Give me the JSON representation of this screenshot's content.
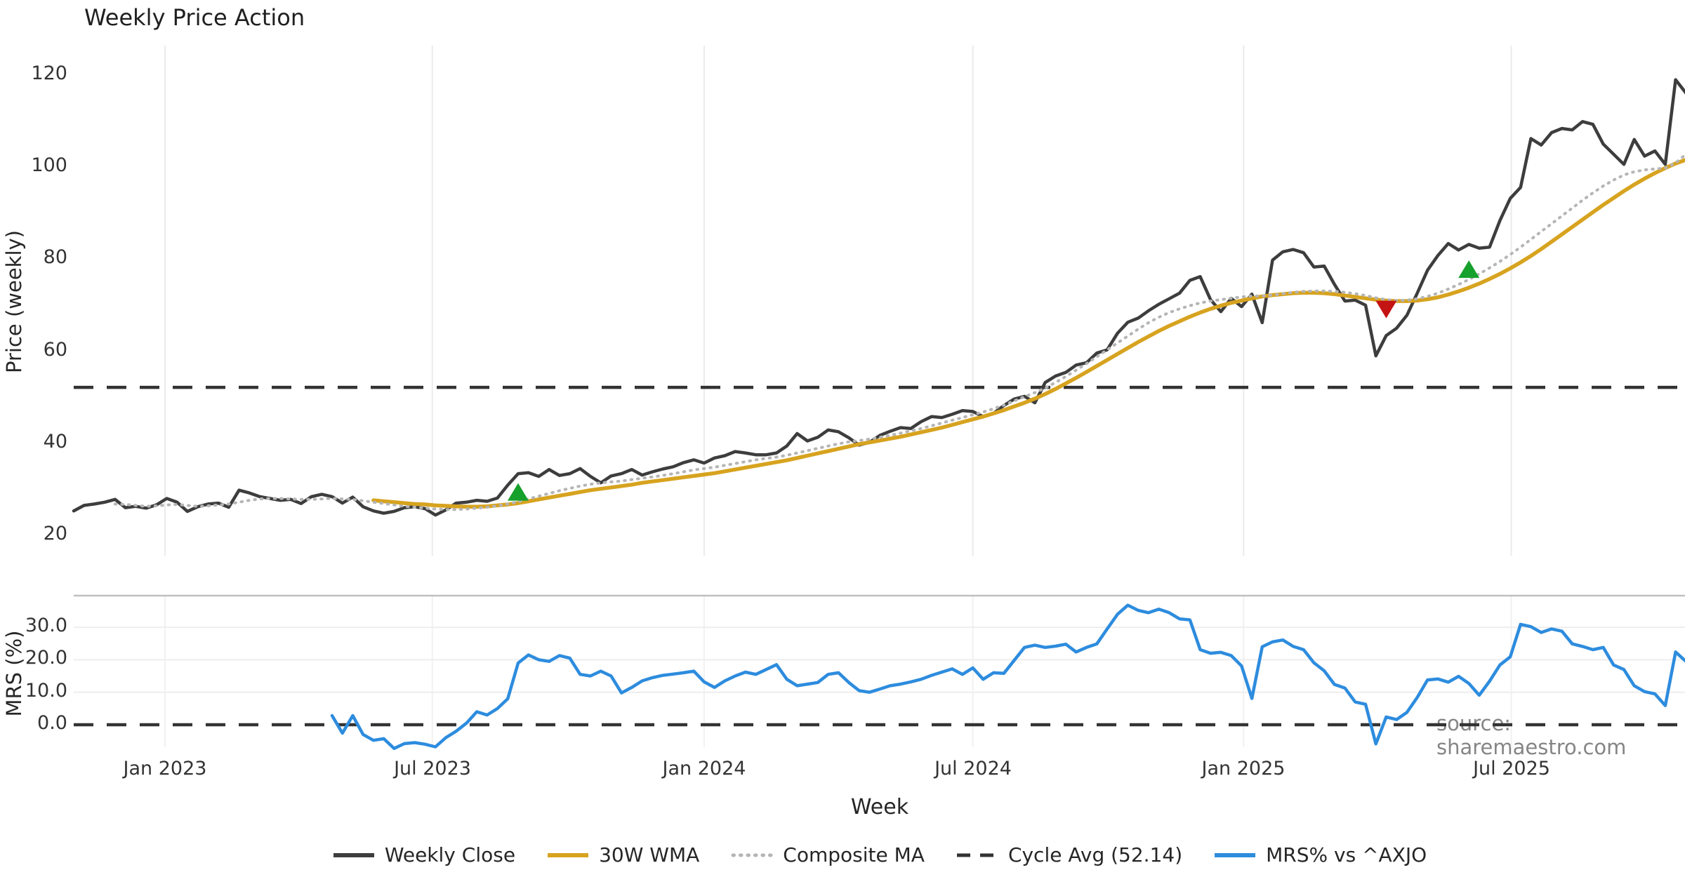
{
  "title": "Weekly Price Action",
  "watermark": "source: sharemaestro.com",
  "axes": {
    "price_label": "Price (weekly)",
    "mrs_label": "MRS (%)",
    "week_label": "Week"
  },
  "legend": {
    "items": [
      {
        "label": "Weekly Close",
        "swatch": "solid",
        "color_key": "close"
      },
      {
        "label": "30W WMA",
        "swatch": "solid",
        "color_key": "wma"
      },
      {
        "label": "Composite MA",
        "swatch": "dotted",
        "color_key": "composite"
      },
      {
        "label": "Cycle Avg (52.14)",
        "swatch": "dashed",
        "color_key": "cycle"
      },
      {
        "label": "MRS% vs ^AXJO",
        "swatch": "solid",
        "color_key": "mrs"
      }
    ]
  },
  "colors": {
    "close": "#3d3d3d",
    "wma": "#d7a31f",
    "composite": "#b5b5b5",
    "cycle": "#333333",
    "mrs": "#2d8cde",
    "buy": "#16a02c",
    "sell": "#c41313",
    "grid": "#ebebeb",
    "separator": "#bfbfbf"
  },
  "x_axis": {
    "label": "Week",
    "tick_labels": [
      "Jan 2023",
      "Jul 2023",
      "Jan 2024",
      "Jul 2024",
      "Jan 2025",
      "Jul 2025"
    ],
    "tick_weeks": [
      8.83,
      34.7,
      61.0,
      87.0,
      113.2,
      139.1
    ],
    "total_weeks": 156
  },
  "chart_data": [
    {
      "type": "line",
      "panel": "price",
      "title": "Weekly Price Action",
      "xlabel": "Week",
      "ylabel": "Price (weekly)",
      "ylim": [
        18,
        126
      ],
      "yticks": [
        120,
        100,
        80,
        60,
        40,
        20
      ],
      "grid": "vertical-only",
      "hlines": [
        {
          "name": "Cycle Avg",
          "value": 52.14,
          "style": "dashed",
          "color_key": "cycle"
        }
      ],
      "markers": [
        {
          "dir": "up",
          "week": 43,
          "value": 29.2,
          "color_key": "buy"
        },
        {
          "dir": "down",
          "week": 127,
          "value": 69.3,
          "color_key": "sell"
        },
        {
          "dir": "up",
          "week": 135,
          "value": 77.6,
          "color_key": "buy"
        }
      ],
      "series": [
        {
          "name": "Weekly Close",
          "color_key": "close",
          "style": "solid",
          "width": 4.5,
          "start_week": 0,
          "values": [
            25.3,
            26.5,
            26.8,
            27.2,
            27.8,
            26.0,
            26.3,
            25.9,
            26.6,
            28.0,
            27.2,
            25.2,
            26.2,
            26.8,
            27.0,
            26.1,
            29.8,
            29.2,
            28.4,
            28.0,
            27.6,
            27.8,
            26.9,
            28.4,
            28.9,
            28.4,
            27.0,
            28.3,
            26.2,
            25.3,
            24.8,
            25.2,
            26.0,
            26.2,
            25.8,
            24.4,
            25.5,
            27.0,
            27.2,
            27.6,
            27.4,
            28.1,
            30.9,
            33.4,
            33.6,
            32.8,
            34.3,
            33.0,
            33.4,
            34.5,
            32.8,
            31.4,
            32.9,
            33.4,
            34.3,
            33.1,
            33.8,
            34.4,
            34.9,
            35.8,
            36.4,
            35.7,
            36.8,
            37.3,
            38.2,
            37.9,
            37.5,
            37.5,
            37.9,
            39.4,
            42.1,
            40.5,
            41.3,
            42.9,
            42.5,
            41.2,
            39.6,
            40.2,
            41.7,
            42.6,
            43.4,
            43.2,
            44.7,
            45.8,
            45.6,
            46.3,
            47.1,
            46.9,
            45.8,
            46.5,
            48.2,
            49.6,
            50.2,
            48.8,
            53.2,
            54.6,
            55.4,
            57.0,
            57.5,
            59.6,
            60.3,
            63.9,
            66.3,
            67.2,
            68.8,
            70.2,
            71.4,
            72.6,
            75.4,
            76.2,
            71.2,
            68.6,
            71.5,
            69.7,
            72.4,
            66.2,
            79.8,
            81.6,
            82.1,
            81.4,
            78.3,
            78.5,
            74.5,
            70.9,
            71.1,
            70.0,
            59.0,
            63.4,
            65.0,
            67.8,
            72.6,
            77.6,
            80.8,
            83.4,
            82.0,
            83.2,
            82.4,
            82.6,
            88.4,
            93.2,
            95.6,
            106.2,
            104.8,
            107.5,
            108.4,
            108.1,
            109.9,
            109.3,
            105.0,
            102.8,
            100.6,
            106.0,
            102.4,
            103.5,
            100.6,
            119.0,
            116.1
          ]
        },
        {
          "name": "30W WMA",
          "color_key": "wma",
          "style": "solid",
          "width": 5.5,
          "start_week": 29,
          "values": [
            27.6,
            27.4,
            27.2,
            27.0,
            26.8,
            26.7,
            26.5,
            26.4,
            26.3,
            26.2,
            26.2,
            26.3,
            26.5,
            26.7,
            27.0,
            27.4,
            27.8,
            28.2,
            28.6,
            29.0,
            29.4,
            29.8,
            30.1,
            30.4,
            30.7,
            31.0,
            31.4,
            31.7,
            32.0,
            32.3,
            32.6,
            32.9,
            33.2,
            33.5,
            33.9,
            34.3,
            34.7,
            35.1,
            35.5,
            35.9,
            36.3,
            36.8,
            37.3,
            37.8,
            38.3,
            38.8,
            39.3,
            39.8,
            40.2,
            40.6,
            41.0,
            41.4,
            41.9,
            42.4,
            42.9,
            43.4,
            44.0,
            44.6,
            45.2,
            45.8,
            46.5,
            47.2,
            48.0,
            48.8,
            49.7,
            50.7,
            51.8,
            53.0,
            54.2,
            55.5,
            56.8,
            58.1,
            59.4,
            60.7,
            62.0,
            63.2,
            64.4,
            65.5,
            66.5,
            67.5,
            68.4,
            69.2,
            69.9,
            70.5,
            71.0,
            71.5,
            71.9,
            72.2,
            72.4,
            72.6,
            72.7,
            72.7,
            72.6,
            72.4,
            72.1,
            71.8,
            71.5,
            71.2,
            71.0,
            70.9,
            70.9,
            71.0,
            71.3,
            71.7,
            72.3,
            73.0,
            73.8,
            74.7,
            75.7,
            76.8,
            78.0,
            79.3,
            80.7,
            82.2,
            83.8,
            85.4,
            87.0,
            88.6,
            90.2,
            91.8,
            93.3,
            94.8,
            96.2,
            97.5,
            98.7,
            99.8,
            100.8,
            101.6
          ]
        },
        {
          "name": "Composite MA",
          "color_key": "composite",
          "style": "dotted",
          "width": 4,
          "start_week": 4,
          "values": [
            26.8,
            26.7,
            26.5,
            26.3,
            26.4,
            26.6,
            26.7,
            26.5,
            26.3,
            26.4,
            26.6,
            26.8,
            27.2,
            27.6,
            27.9,
            28.0,
            28.0,
            27.9,
            27.8,
            27.8,
            27.9,
            28.0,
            27.9,
            27.8,
            27.5,
            27.2,
            26.9,
            26.6,
            26.3,
            26.1,
            25.9,
            25.7,
            25.6,
            25.6,
            25.7,
            25.9,
            26.1,
            26.4,
            26.8,
            27.3,
            27.9,
            28.5,
            29.1,
            29.7,
            30.2,
            30.7,
            31.1,
            31.4,
            31.6,
            31.8,
            32.1,
            32.4,
            32.7,
            33.0,
            33.4,
            33.8,
            34.2,
            34.5,
            34.8,
            35.2,
            35.6,
            36.0,
            36.4,
            36.7,
            37.0,
            37.4,
            37.9,
            38.4,
            38.9,
            39.4,
            39.9,
            40.3,
            40.6,
            40.9,
            41.3,
            41.7,
            42.2,
            42.7,
            43.2,
            43.8,
            44.4,
            45.0,
            45.6,
            46.2,
            46.8,
            47.5,
            48.3,
            49.2,
            50.1,
            51.0,
            52.0,
            53.2,
            54.5,
            55.9,
            57.3,
            58.8,
            60.3,
            61.8,
            63.3,
            64.8,
            66.2,
            67.4,
            68.4,
            69.2,
            69.9,
            70.5,
            70.9,
            71.2,
            71.5,
            71.8,
            72.0,
            72.0,
            72.2,
            72.5,
            72.8,
            73.0,
            73.1,
            73.1,
            73.0,
            72.8,
            72.5,
            72.1,
            71.6,
            71.2,
            71.0,
            71.1,
            71.4,
            71.9,
            72.6,
            73.5,
            74.5,
            75.6,
            76.8,
            78.1,
            79.5,
            81.0,
            82.6,
            84.3,
            86.0,
            87.7,
            89.4,
            91.1,
            92.8,
            94.4,
            95.9,
            97.2,
            98.3,
            99.0,
            99.4,
            99.6,
            99.8,
            100.9,
            102.8
          ]
        }
      ]
    },
    {
      "type": "line",
      "panel": "mrs",
      "ylabel": "MRS (%)",
      "ylim": [
        -10,
        40
      ],
      "yticks": [
        30.0,
        20.0,
        10.0,
        0.0
      ],
      "ytick_labels": [
        "30.0",
        "20.0",
        "10.0",
        "0.0"
      ],
      "grid": "horizontal-and-vertical",
      "hlines": [
        {
          "name": "Zero line",
          "value": 0,
          "style": "dashed",
          "color_key": "cycle"
        }
      ],
      "series": [
        {
          "name": "MRS% vs ^AXJO",
          "color_key": "mrs",
          "style": "solid",
          "width": 4.5,
          "start_week": 25,
          "values": [
            2.8,
            -2.6,
            2.8,
            -3.0,
            -4.8,
            -4.3,
            -7.3,
            -5.8,
            -5.5,
            -6.0,
            -6.8,
            -4.0,
            -2.0,
            0.5,
            4.0,
            3.0,
            5.0,
            8.0,
            19.0,
            21.5,
            20.0,
            19.5,
            21.3,
            20.5,
            15.5,
            15.0,
            16.5,
            15.0,
            9.8,
            11.5,
            13.5,
            14.5,
            15.2,
            15.6,
            16.0,
            16.5,
            13.2,
            11.5,
            13.5,
            15.0,
            16.2,
            15.5,
            17.0,
            18.5,
            14.0,
            12.0,
            12.5,
            13.0,
            15.5,
            16.0,
            13.0,
            10.5,
            10.0,
            11.0,
            12.0,
            12.5,
            13.2,
            14.0,
            15.2,
            16.2,
            17.2,
            15.5,
            17.5,
            14.0,
            16.0,
            15.8,
            19.8,
            23.8,
            24.5,
            23.8,
            24.2,
            24.8,
            22.4,
            23.8,
            24.9,
            29.5,
            34.0,
            36.8,
            35.2,
            34.5,
            35.6,
            34.5,
            32.6,
            32.3,
            23.1,
            22.0,
            22.3,
            21.3,
            18.1,
            8.1,
            24.0,
            25.5,
            26.1,
            24.1,
            23.1,
            19.1,
            16.6,
            12.4,
            11.3,
            7.0,
            6.3,
            -5.9,
            2.4,
            1.6,
            3.8,
            8.4,
            13.8,
            14.1,
            13.1,
            14.9,
            12.7,
            9.1,
            13.4,
            18.4,
            20.9,
            30.9,
            30.2,
            28.4,
            29.5,
            28.8,
            24.9,
            24.1,
            23.1,
            23.8,
            18.4,
            17.0,
            12.0,
            10.2,
            9.5,
            5.9,
            22.4,
            19.5
          ]
        }
      ]
    }
  ]
}
